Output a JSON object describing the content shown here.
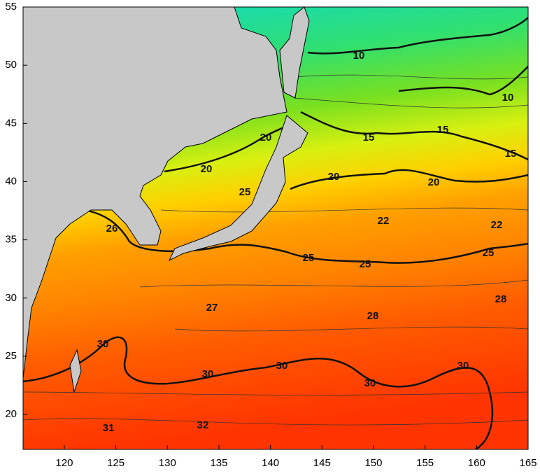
{
  "map": {
    "x_axis": {
      "xlim": [
        116,
        165
      ],
      "xticks": [
        120,
        125,
        130,
        135,
        140,
        145,
        150,
        155,
        160,
        165
      ]
    },
    "y_axis": {
      "ylim": [
        17,
        55
      ],
      "yticks": [
        20,
        25,
        30,
        35,
        40,
        45,
        50,
        55
      ]
    },
    "contour_labels": [
      10,
      10,
      15,
      15,
      15,
      20,
      20,
      20,
      20,
      22,
      22,
      25,
      25,
      25,
      25,
      26,
      27,
      28,
      28,
      30,
      30,
      30,
      30,
      30,
      31,
      32
    ]
  }
}
